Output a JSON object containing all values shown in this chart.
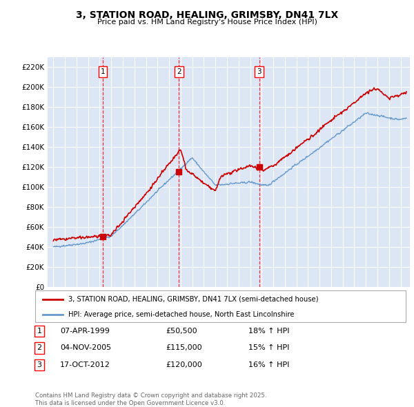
{
  "title": "3, STATION ROAD, HEALING, GRIMSBY, DN41 7LX",
  "subtitle": "Price paid vs. HM Land Registry's House Price Index (HPI)",
  "ylim": [
    0,
    230000
  ],
  "yticks": [
    0,
    20000,
    40000,
    60000,
    80000,
    100000,
    120000,
    140000,
    160000,
    180000,
    200000,
    220000
  ],
  "ytick_labels": [
    "£0",
    "£20K",
    "£40K",
    "£60K",
    "£80K",
    "£100K",
    "£120K",
    "£140K",
    "£160K",
    "£180K",
    "£200K",
    "£220K"
  ],
  "plot_bg_color": "#dce6f5",
  "sale_color": "#cc0000",
  "hpi_color": "#6699cc",
  "sale_dates": [
    1999.27,
    2005.84,
    2012.79
  ],
  "sale_prices": [
    50500,
    115000,
    120000
  ],
  "sale_labels": [
    "1",
    "2",
    "3"
  ],
  "legend_sale": "3, STATION ROAD, HEALING, GRIMSBY, DN41 7LX (semi-detached house)",
  "legend_hpi": "HPI: Average price, semi-detached house, North East Lincolnshire",
  "table_data": [
    [
      "1",
      "07-APR-1999",
      "£50,500",
      "18% ↑ HPI"
    ],
    [
      "2",
      "04-NOV-2005",
      "£115,000",
      "15% ↑ HPI"
    ],
    [
      "3",
      "17-OCT-2012",
      "£120,000",
      "16% ↑ HPI"
    ]
  ],
  "footer": "Contains HM Land Registry data © Crown copyright and database right 2025.\nThis data is licensed under the Open Government Licence v3.0.",
  "xmin": 1994.5,
  "xmax": 2025.8
}
